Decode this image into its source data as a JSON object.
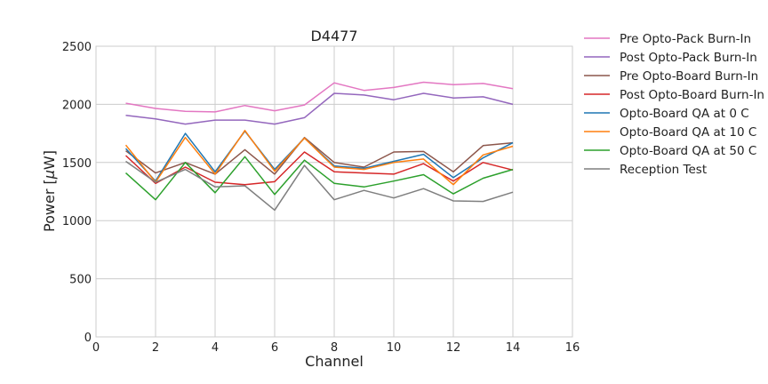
{
  "chart_data": {
    "type": "line",
    "title": "D4477",
    "xlabel": "Channel",
    "ylabel_prefix": "Power [",
    "ylabel_mu": "μ",
    "ylabel_suffix": "W]",
    "xlim": [
      0,
      16
    ],
    "ylim": [
      0,
      2500
    ],
    "xticks": [
      0,
      2,
      4,
      6,
      8,
      10,
      12,
      14,
      16
    ],
    "yticks": [
      0,
      500,
      1000,
      1500,
      2000,
      2500
    ],
    "grid": true,
    "legend_position": "outside-right",
    "x": [
      1,
      2,
      3,
      4,
      5,
      6,
      7,
      8,
      9,
      10,
      11,
      12,
      13,
      14
    ],
    "series": [
      {
        "name": "Pre Opto-Pack Burn-In",
        "color": "#e377c2",
        "values": [
          2010,
          1965,
          1940,
          1935,
          1990,
          1945,
          1995,
          2185,
          2120,
          2145,
          2190,
          2170,
          2180,
          2135
        ]
      },
      {
        "name": "Post Opto-Pack Burn-In",
        "color": "#9467bd",
        "values": [
          1905,
          1875,
          1830,
          1865,
          1865,
          1830,
          1885,
          2095,
          2080,
          2040,
          2095,
          2055,
          2065,
          2000
        ]
      },
      {
        "name": "Pre Opto-Board Burn-In",
        "color": "#8c564b",
        "values": [
          1600,
          1410,
          1500,
          1400,
          1610,
          1400,
          1715,
          1500,
          1460,
          1590,
          1595,
          1420,
          1645,
          1670
        ]
      },
      {
        "name": "Post Opto-Board Burn-In",
        "color": "#d62728",
        "values": [
          1560,
          1320,
          1460,
          1330,
          1310,
          1335,
          1590,
          1420,
          1410,
          1400,
          1490,
          1340,
          1500,
          1435
        ]
      },
      {
        "name": "Opto-Board QA at 0 C",
        "color": "#1f77b4",
        "values": [
          1620,
          1340,
          1750,
          1420,
          1770,
          1440,
          1710,
          1470,
          1450,
          1510,
          1570,
          1370,
          1540,
          1670
        ]
      },
      {
        "name": "Opto-Board QA at 10 C",
        "color": "#ff7f0e",
        "values": [
          1650,
          1330,
          1715,
          1400,
          1775,
          1425,
          1710,
          1460,
          1440,
          1500,
          1530,
          1310,
          1565,
          1640
        ]
      },
      {
        "name": "Opto-Board QA at 50 C",
        "color": "#2ca02c",
        "values": [
          1410,
          1180,
          1500,
          1240,
          1550,
          1225,
          1520,
          1320,
          1290,
          1340,
          1395,
          1230,
          1365,
          1440
        ]
      },
      {
        "name": "Reception Test",
        "color": "#7f7f7f",
        "values": [
          1510,
          1330,
          1440,
          1290,
          1300,
          1090,
          1475,
          1180,
          1260,
          1195,
          1275,
          1170,
          1165,
          1245
        ]
      }
    ]
  }
}
